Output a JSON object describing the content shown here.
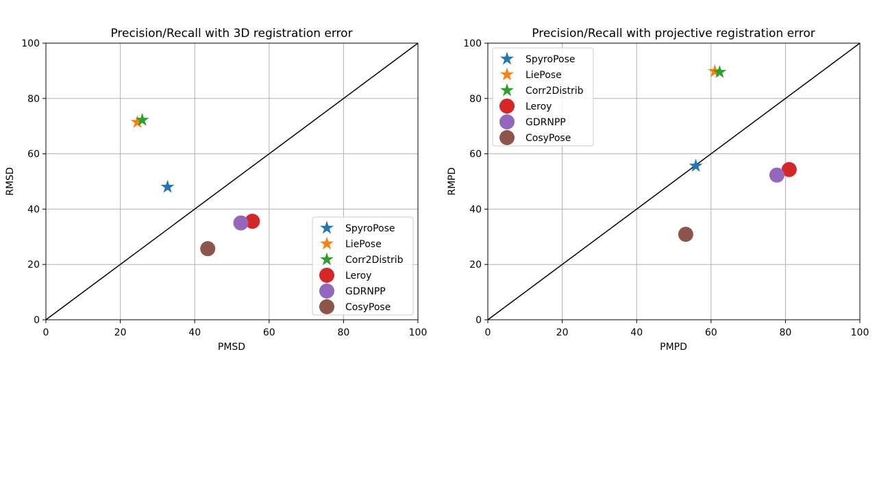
{
  "colors": {
    "SpyroPose": "#1f77b4",
    "LiePose": "#ff7f0e",
    "Corr2Distrib": "#2ca02c",
    "Leroy": "#d62728",
    "GDRNPP": "#9467bd",
    "CosyPose": "#8c564b",
    "diagonal": "#000000",
    "grid": "#b0b0b0"
  },
  "chart_data": [
    {
      "type": "scatter",
      "title": "Precision/Recall with 3D registration error",
      "xlabel": "PMSD",
      "ylabel": "RMSD",
      "xlim": [
        0,
        100
      ],
      "ylim": [
        0,
        100
      ],
      "xticks": [
        "0",
        "20",
        "40",
        "60",
        "80",
        "100"
      ],
      "yticks": [
        "0",
        "20",
        "40",
        "60",
        "80",
        "100"
      ],
      "grid": true,
      "diagonal": true,
      "legend_position": "lower-right",
      "series": [
        {
          "name": "SpyroPose",
          "marker": "star",
          "x": 32.7,
          "y": 48.0
        },
        {
          "name": "LiePose",
          "marker": "star",
          "x": 24.6,
          "y": 71.4
        },
        {
          "name": "Corr2Distrib",
          "marker": "star",
          "x": 25.9,
          "y": 72.2
        },
        {
          "name": "Leroy",
          "marker": "circle",
          "x": 55.5,
          "y": 35.6
        },
        {
          "name": "GDRNPP",
          "marker": "circle",
          "x": 52.4,
          "y": 35.0
        },
        {
          "name": "CosyPose",
          "marker": "circle",
          "x": 43.5,
          "y": 25.7
        }
      ]
    },
    {
      "type": "scatter",
      "title": "Precision/Recall with projective registration error",
      "xlabel": "PMPD",
      "ylabel": "RMPD",
      "xlim": [
        0,
        100
      ],
      "ylim": [
        0,
        100
      ],
      "xticks": [
        "0",
        "20",
        "40",
        "60",
        "80",
        "100"
      ],
      "yticks": [
        "0",
        "20",
        "40",
        "60",
        "80",
        "100"
      ],
      "grid": true,
      "diagonal": true,
      "legend_position": "upper-left",
      "series": [
        {
          "name": "SpyroPose",
          "marker": "star",
          "x": 55.9,
          "y": 55.6
        },
        {
          "name": "LiePose",
          "marker": "star",
          "x": 61.0,
          "y": 89.8
        },
        {
          "name": "Corr2Distrib",
          "marker": "star",
          "x": 62.3,
          "y": 89.5
        },
        {
          "name": "Leroy",
          "marker": "circle",
          "x": 81.0,
          "y": 54.3
        },
        {
          "name": "GDRNPP",
          "marker": "circle",
          "x": 77.7,
          "y": 52.3
        },
        {
          "name": "CosyPose",
          "marker": "circle",
          "x": 53.2,
          "y": 30.9
        }
      ]
    }
  ]
}
